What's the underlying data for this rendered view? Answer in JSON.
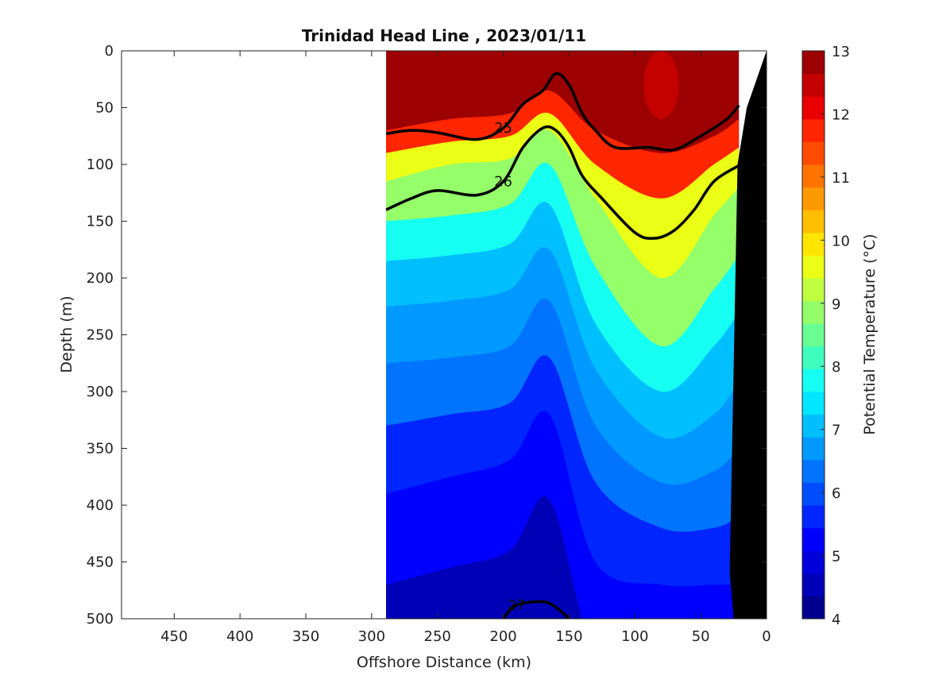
{
  "chart_data": {
    "type": "heatmap",
    "subtype": "filled-contour-section",
    "title": "Trinidad Head Line , 2023/01/11",
    "xlabel": "Offshore Distance (km)",
    "ylabel": "Depth (m)",
    "xlim": [
      490,
      0
    ],
    "ylim": [
      0,
      500
    ],
    "x_reversed": true,
    "y_reversed": true,
    "xticks": [
      450,
      400,
      350,
      300,
      250,
      200,
      150,
      100,
      50,
      0
    ],
    "yticks": [
      0,
      50,
      100,
      150,
      200,
      250,
      300,
      350,
      400,
      450,
      500
    ],
    "colorbar": {
      "label": "Potential Temperature (°C)",
      "min": 4,
      "max": 13,
      "ticks": [
        4,
        5,
        6,
        7,
        8,
        9,
        10,
        11,
        12,
        13
      ],
      "levels": [
        4,
        4.5,
        5,
        5.5,
        6,
        6.5,
        7,
        7.5,
        8,
        8.5,
        9,
        9.5,
        10,
        10.5,
        11,
        11.5,
        12,
        12.5,
        13
      ],
      "colors": [
        "#00008f",
        "#0000b6",
        "#0000db",
        "#0000ff",
        "#0025ff",
        "#004cff",
        "#0073ff",
        "#0099ff",
        "#00bfff",
        "#00e6ff",
        "#15fff2",
        "#3fffbf",
        "#6aff93",
        "#95ff6a",
        "#bfff40",
        "#eaff15",
        "#ffe600",
        "#ffbf00",
        "#ff9900",
        "#ff7300",
        "#ff4c00",
        "#ff2600",
        "#ea0000",
        "#c40000",
        "#9d0000"
      ]
    },
    "data_extent_km": [
      289,
      21
    ],
    "density_contours": {
      "labeled": [
        25,
        26,
        27
      ],
      "isopycnals": [
        {
          "label": "25",
          "points": [
            [
              289,
              73
            ],
            [
              270,
              70
            ],
            [
              250,
              72
            ],
            [
              220,
              78
            ],
            [
              200,
              68
            ],
            [
              185,
              47
            ],
            [
              170,
              35
            ],
            [
              160,
              20
            ],
            [
              150,
              30
            ],
            [
              140,
              55
            ],
            [
              130,
              70
            ],
            [
              115,
              85
            ],
            [
              90,
              85
            ],
            [
              70,
              87
            ],
            [
              50,
              75
            ],
            [
              30,
              60
            ],
            [
              21,
              48
            ]
          ]
        },
        {
          "label": "26",
          "points": [
            [
              289,
              140
            ],
            [
              270,
              130
            ],
            [
              250,
              123
            ],
            [
              220,
              127
            ],
            [
              200,
              115
            ],
            [
              185,
              85
            ],
            [
              170,
              68
            ],
            [
              160,
              70
            ],
            [
              150,
              85
            ],
            [
              140,
              110
            ],
            [
              125,
              130
            ],
            [
              100,
              160
            ],
            [
              85,
              165
            ],
            [
              70,
              158
            ],
            [
              55,
              140
            ],
            [
              40,
              115
            ],
            [
              21,
              101
            ]
          ]
        },
        {
          "label": "27",
          "points": [
            [
              200,
              500
            ],
            [
              190,
              488
            ],
            [
              170,
              485
            ],
            [
              160,
              490
            ],
            [
              150,
              500
            ]
          ]
        }
      ]
    },
    "temperature_sections": [
      {
        "x_km": 289,
        "boundaries": [
          {
            "temp": 12,
            "depth": 70
          },
          {
            "temp": 10,
            "depth": 90
          },
          {
            "temp": 9,
            "depth": 115
          },
          {
            "temp": 8,
            "depth": 150
          },
          {
            "temp": 7.5,
            "depth": 185
          },
          {
            "temp": 7,
            "depth": 225
          },
          {
            "temp": 6.5,
            "depth": 275
          },
          {
            "temp": 6,
            "depth": 330
          },
          {
            "temp": 5.5,
            "depth": 390
          },
          {
            "temp": 5,
            "depth": 470
          }
        ]
      },
      {
        "x_km": 240,
        "boundaries": [
          {
            "temp": 12,
            "depth": 60
          },
          {
            "temp": 10,
            "depth": 80
          },
          {
            "temp": 9,
            "depth": 100
          },
          {
            "temp": 8,
            "depth": 145
          },
          {
            "temp": 7.5,
            "depth": 180
          },
          {
            "temp": 7,
            "depth": 220
          },
          {
            "temp": 6.5,
            "depth": 270
          },
          {
            "temp": 6,
            "depth": 320
          },
          {
            "temp": 5.5,
            "depth": 375
          },
          {
            "temp": 5,
            "depth": 455
          }
        ]
      },
      {
        "x_km": 195,
        "boundaries": [
          {
            "temp": 12,
            "depth": 55
          },
          {
            "temp": 10,
            "depth": 75
          },
          {
            "temp": 9,
            "depth": 95
          },
          {
            "temp": 8,
            "depth": 135
          },
          {
            "temp": 7.5,
            "depth": 170
          },
          {
            "temp": 7,
            "depth": 210
          },
          {
            "temp": 6.5,
            "depth": 260
          },
          {
            "temp": 6,
            "depth": 310
          },
          {
            "temp": 5.5,
            "depth": 360
          },
          {
            "temp": 5,
            "depth": 440
          }
        ]
      },
      {
        "x_km": 165,
        "boundaries": [
          {
            "temp": 12,
            "depth": 35
          },
          {
            "temp": 10,
            "depth": 55
          },
          {
            "temp": 9,
            "depth": 70
          },
          {
            "temp": 8,
            "depth": 100
          },
          {
            "temp": 7.5,
            "depth": 135
          },
          {
            "temp": 7,
            "depth": 175
          },
          {
            "temp": 6.5,
            "depth": 220
          },
          {
            "temp": 6,
            "depth": 270
          },
          {
            "temp": 5.5,
            "depth": 320
          },
          {
            "temp": 5,
            "depth": 395
          }
        ]
      },
      {
        "x_km": 130,
        "boundaries": [
          {
            "temp": 12,
            "depth": 70
          },
          {
            "temp": 10,
            "depth": 100
          },
          {
            "temp": 9,
            "depth": 130
          },
          {
            "temp": 8,
            "depth": 190
          },
          {
            "temp": 7.5,
            "depth": 240
          },
          {
            "temp": 7,
            "depth": 280
          },
          {
            "temp": 6.5,
            "depth": 330
          },
          {
            "temp": 6,
            "depth": 380
          },
          {
            "temp": 5.5,
            "depth": 450
          },
          {
            "temp": 5,
            "depth": 530
          }
        ]
      },
      {
        "x_km": 80,
        "boundaries": [
          {
            "temp": 12,
            "depth": 90
          },
          {
            "temp": 10,
            "depth": 130
          },
          {
            "temp": 9,
            "depth": 200
          },
          {
            "temp": 8,
            "depth": 260
          },
          {
            "temp": 7.5,
            "depth": 300
          },
          {
            "temp": 7,
            "depth": 340
          },
          {
            "temp": 6.5,
            "depth": 380
          },
          {
            "temp": 6,
            "depth": 420
          },
          {
            "temp": 5.5,
            "depth": 470
          },
          {
            "temp": 5,
            "depth": 540
          }
        ]
      },
      {
        "x_km": 40,
        "boundaries": [
          {
            "temp": 12,
            "depth": 75
          },
          {
            "temp": 10,
            "depth": 100
          },
          {
            "temp": 9,
            "depth": 145
          },
          {
            "temp": 8,
            "depth": 210
          },
          {
            "temp": 7.5,
            "depth": 260
          },
          {
            "temp": 7,
            "depth": 320
          },
          {
            "temp": 6.5,
            "depth": 370
          },
          {
            "temp": 6,
            "depth": 420
          },
          {
            "temp": 5.5,
            "depth": 470
          },
          {
            "temp": 5,
            "depth": 530
          }
        ]
      },
      {
        "x_km": 21,
        "boundaries": [
          {
            "temp": 12,
            "depth": 60
          },
          {
            "temp": 10,
            "depth": 85
          },
          {
            "temp": 9,
            "depth": 120
          },
          {
            "temp": 8,
            "depth": 180
          },
          {
            "temp": 7.5,
            "depth": 230
          },
          {
            "temp": 7,
            "depth": 290
          },
          {
            "temp": 6.5,
            "depth": 350
          },
          {
            "temp": 6,
            "depth": 410
          },
          {
            "temp": 5.5,
            "depth": 470
          },
          {
            "temp": 5,
            "depth": 540
          }
        ]
      }
    ],
    "warm_core": [
      {
        "x_km": 80,
        "temp": 12.5,
        "depth_top": 0,
        "depth_bottom": 60
      }
    ],
    "bathymetry": {
      "color": "#000000",
      "points": [
        [
          0,
          0
        ],
        [
          0,
          500
        ],
        [
          25,
          500
        ],
        [
          28,
          460
        ],
        [
          22,
          100
        ],
        [
          15,
          50
        ],
        [
          0,
          0
        ]
      ]
    }
  }
}
